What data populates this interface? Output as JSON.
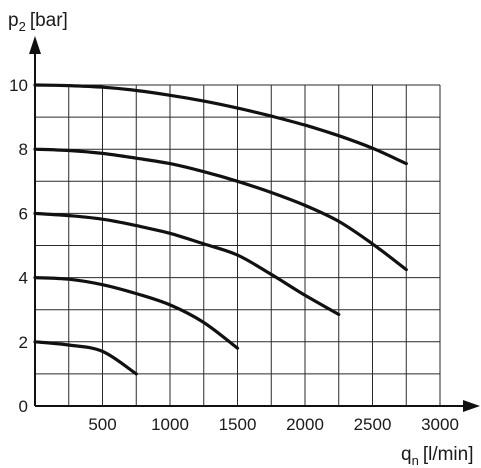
{
  "chart_data": {
    "type": "line",
    "y_axis_label": {
      "main": "p",
      "sub": "2",
      "unit": "[bar]"
    },
    "x_axis_label": {
      "main": "q",
      "sub": "n",
      "unit": "[l/min]"
    },
    "xlim": [
      0,
      3000
    ],
    "ylim": [
      0,
      10
    ],
    "x_ticks": [
      500,
      1000,
      1500,
      2000,
      2500,
      3000
    ],
    "y_ticks": [
      0,
      2,
      4,
      6,
      8,
      10
    ],
    "grid": true,
    "grid_x_step": 250,
    "grid_y_step": 1,
    "series": [
      {
        "x": [
          0,
          250,
          500,
          750,
          1000,
          1250,
          1500,
          1750,
          2000,
          2250,
          2500,
          2750
        ],
        "y": [
          10.0,
          9.98,
          9.93,
          9.83,
          9.68,
          9.5,
          9.28,
          9.03,
          8.75,
          8.42,
          8.03,
          7.55
        ]
      },
      {
        "x": [
          0,
          250,
          500,
          750,
          1000,
          1250,
          1500,
          1750,
          2000,
          2250,
          2500,
          2750
        ],
        "y": [
          8.0,
          7.96,
          7.87,
          7.72,
          7.55,
          7.3,
          7.0,
          6.65,
          6.25,
          5.75,
          5.05,
          4.25
        ]
      },
      {
        "x": [
          0,
          250,
          500,
          750,
          1000,
          1250,
          1500,
          1750,
          2000,
          2250
        ],
        "y": [
          6.0,
          5.93,
          5.82,
          5.62,
          5.38,
          5.05,
          4.7,
          4.1,
          3.45,
          2.85
        ]
      },
      {
        "x": [
          0,
          250,
          500,
          750,
          1000,
          1250,
          1500
        ],
        "y": [
          4.0,
          3.95,
          3.78,
          3.5,
          3.15,
          2.6,
          1.8
        ]
      },
      {
        "x": [
          0,
          250,
          500,
          750
        ],
        "y": [
          2.0,
          1.9,
          1.7,
          1.0
        ]
      }
    ]
  }
}
